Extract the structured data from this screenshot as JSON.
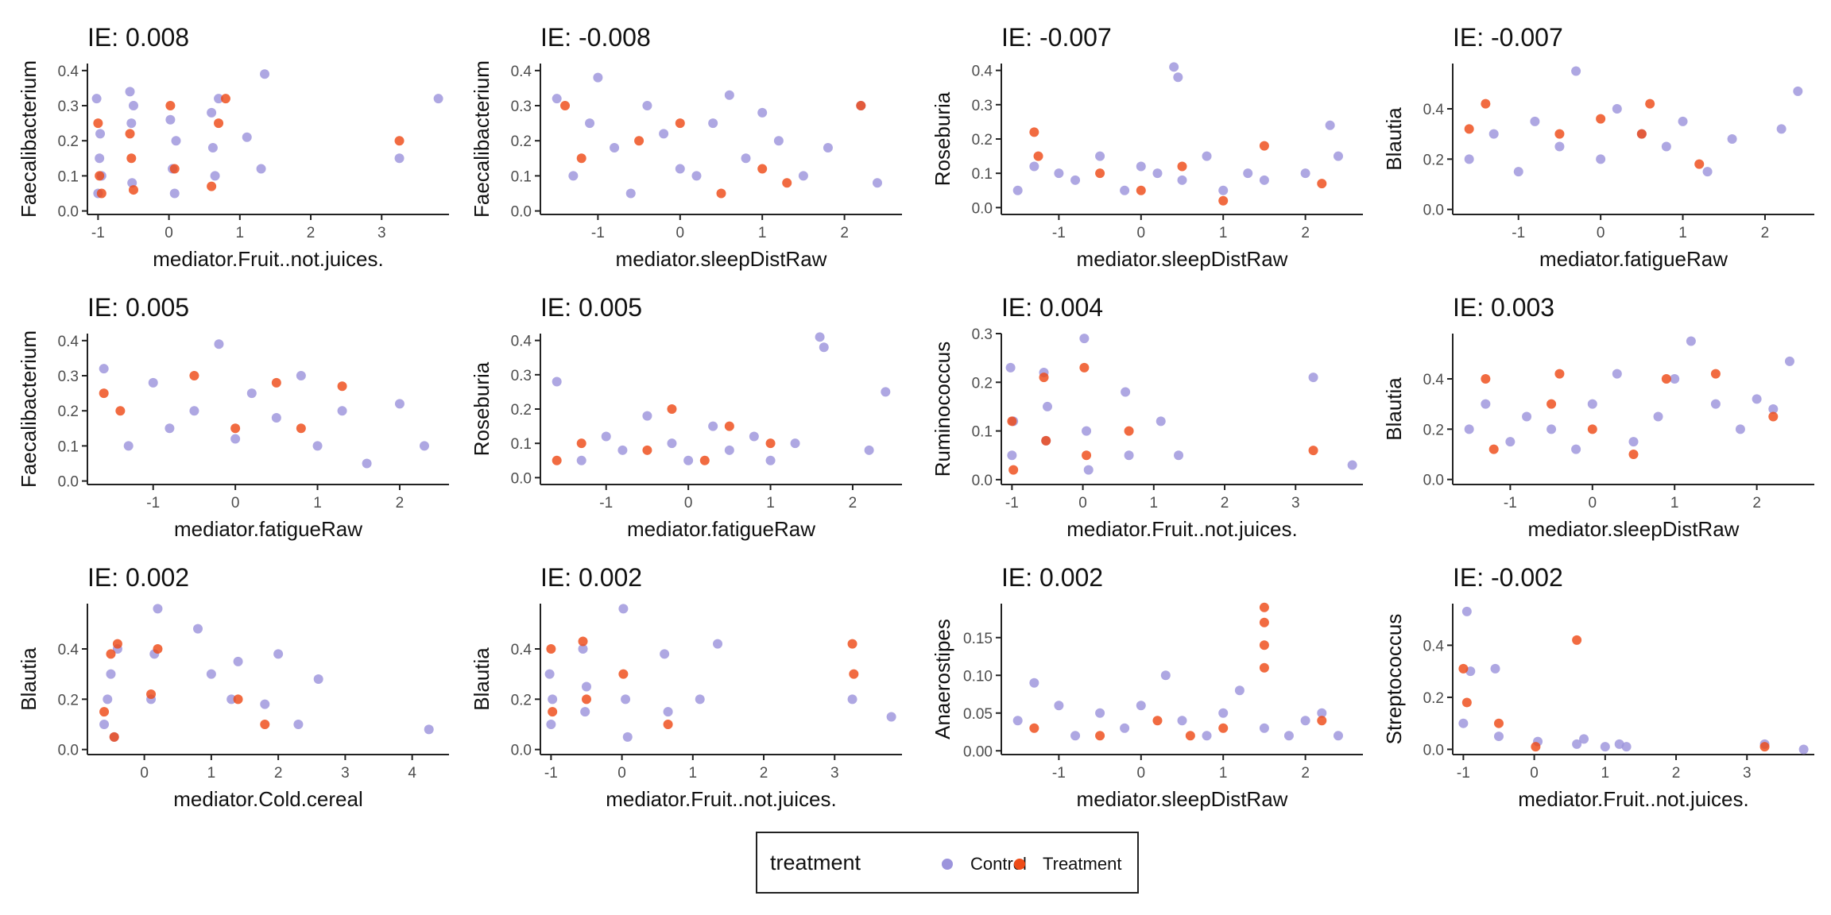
{
  "colors": {
    "control": "#9c94dc",
    "treatment": "#ee4b17",
    "axis": "#222222",
    "tick_text": "#4d4d4d"
  },
  "legend": {
    "title": "treatment",
    "items": [
      {
        "label": "Control"
      },
      {
        "label": "Treatment"
      }
    ]
  },
  "chart_data": [
    {
      "type": "scatter",
      "title": "IE: 0.008",
      "xlabel": "mediator.Fruit..not.juices.",
      "ylabel": "Faecalibacterium",
      "xlim": [
        -1.15,
        3.95
      ],
      "ylim": [
        -0.01,
        0.42
      ],
      "xticks": [
        -1,
        0,
        1,
        2,
        3
      ],
      "yticks": [
        0.0,
        0.1,
        0.2,
        0.3,
        0.4
      ],
      "series": [
        {
          "name": "Control",
          "x": [
            -1.02,
            -1.0,
            -0.98,
            -0.97,
            -0.95,
            -0.55,
            -0.53,
            -0.52,
            -0.5,
            0.02,
            0.05,
            0.08,
            0.1,
            0.6,
            0.62,
            0.65,
            0.7,
            1.1,
            1.3,
            1.35,
            3.25,
            3.8
          ],
          "y": [
            0.32,
            0.05,
            0.15,
            0.22,
            0.1,
            0.34,
            0.25,
            0.08,
            0.3,
            0.26,
            0.12,
            0.05,
            0.2,
            0.28,
            0.18,
            0.1,
            0.32,
            0.21,
            0.12,
            0.39,
            0.15,
            0.32
          ]
        },
        {
          "name": "Treatment",
          "x": [
            -1.0,
            -0.98,
            -0.95,
            -0.55,
            -0.53,
            -0.5,
            0.02,
            0.08,
            0.6,
            0.7,
            0.8,
            3.25
          ],
          "y": [
            0.25,
            0.1,
            0.05,
            0.22,
            0.15,
            0.06,
            0.3,
            0.12,
            0.07,
            0.25,
            0.32,
            0.2
          ]
        }
      ]
    },
    {
      "type": "scatter",
      "title": "IE: -0.008",
      "xlabel": "mediator.sleepDistRaw",
      "ylabel": "Faecalibacterium",
      "xlim": [
        -1.7,
        2.7
      ],
      "ylim": [
        -0.01,
        0.42
      ],
      "xticks": [
        -1,
        0,
        1,
        2
      ],
      "yticks": [
        0.0,
        0.1,
        0.2,
        0.3,
        0.4
      ],
      "series": [
        {
          "name": "Control",
          "x": [
            -1.5,
            -1.3,
            -1.1,
            -1.0,
            -0.8,
            -0.6,
            -0.4,
            -0.2,
            0.0,
            0.2,
            0.4,
            0.6,
            0.8,
            1.0,
            1.2,
            1.5,
            1.8,
            2.2,
            2.4
          ],
          "y": [
            0.32,
            0.1,
            0.25,
            0.38,
            0.18,
            0.05,
            0.3,
            0.22,
            0.12,
            0.1,
            0.25,
            0.33,
            0.15,
            0.28,
            0.2,
            0.1,
            0.18,
            0.3,
            0.08
          ]
        },
        {
          "name": "Treatment",
          "x": [
            -1.4,
            -1.2,
            -0.5,
            0.0,
            0.5,
            1.0,
            1.3,
            2.2
          ],
          "y": [
            0.3,
            0.15,
            0.2,
            0.25,
            0.05,
            0.12,
            0.08,
            0.3
          ]
        }
      ]
    },
    {
      "type": "scatter",
      "title": "IE: -0.007",
      "xlabel": "mediator.sleepDistRaw",
      "ylabel": "Roseburia",
      "xlim": [
        -1.7,
        2.7
      ],
      "ylim": [
        -0.02,
        0.42
      ],
      "xticks": [
        -1,
        0,
        1,
        2
      ],
      "yticks": [
        0.0,
        0.1,
        0.2,
        0.3,
        0.4
      ],
      "series": [
        {
          "name": "Control",
          "x": [
            -1.5,
            -1.3,
            -1.0,
            -0.8,
            -0.5,
            -0.2,
            0.0,
            0.2,
            0.4,
            0.45,
            0.5,
            0.8,
            1.0,
            1.3,
            1.5,
            2.0,
            2.3,
            2.4
          ],
          "y": [
            0.05,
            0.12,
            0.1,
            0.08,
            0.15,
            0.05,
            0.12,
            0.1,
            0.41,
            0.38,
            0.08,
            0.15,
            0.05,
            0.1,
            0.08,
            0.1,
            0.24,
            0.15
          ]
        },
        {
          "name": "Treatment",
          "x": [
            -1.3,
            -1.25,
            -0.5,
            0.0,
            0.5,
            1.0,
            1.5,
            2.2
          ],
          "y": [
            0.22,
            0.15,
            0.1,
            0.05,
            0.12,
            0.02,
            0.18,
            0.07
          ]
        }
      ]
    },
    {
      "type": "scatter",
      "title": "IE: -0.007",
      "xlabel": "mediator.fatigueRaw",
      "ylabel": "Blautia",
      "xlim": [
        -1.8,
        2.6
      ],
      "ylim": [
        -0.02,
        0.58
      ],
      "xticks": [
        -1,
        0,
        1,
        2
      ],
      "yticks": [
        0.0,
        0.2,
        0.4
      ],
      "series": [
        {
          "name": "Control",
          "x": [
            -1.6,
            -1.3,
            -1.0,
            -0.8,
            -0.5,
            -0.3,
            0.0,
            0.2,
            0.5,
            0.8,
            1.0,
            1.3,
            1.6,
            2.2,
            2.4
          ],
          "y": [
            0.2,
            0.3,
            0.15,
            0.35,
            0.25,
            0.55,
            0.2,
            0.4,
            0.3,
            0.25,
            0.35,
            0.15,
            0.28,
            0.32,
            0.47
          ]
        },
        {
          "name": "Treatment",
          "x": [
            -1.6,
            -1.4,
            -0.5,
            0.0,
            0.5,
            0.6,
            1.2
          ],
          "y": [
            0.32,
            0.42,
            0.3,
            0.36,
            0.3,
            0.42,
            0.18
          ]
        }
      ]
    },
    {
      "type": "scatter",
      "title": "IE: 0.005",
      "xlabel": "mediator.fatigueRaw",
      "ylabel": "Faecalibacterium",
      "xlim": [
        -1.8,
        2.6
      ],
      "ylim": [
        -0.01,
        0.42
      ],
      "xticks": [
        -1,
        0,
        1,
        2
      ],
      "yticks": [
        0.0,
        0.1,
        0.2,
        0.3,
        0.4
      ],
      "series": [
        {
          "name": "Control",
          "x": [
            -1.6,
            -1.3,
            -1.0,
            -0.8,
            -0.5,
            -0.2,
            0.0,
            0.2,
            0.5,
            0.8,
            1.0,
            1.3,
            1.6,
            2.0,
            2.3
          ],
          "y": [
            0.32,
            0.1,
            0.28,
            0.15,
            0.2,
            0.39,
            0.12,
            0.25,
            0.18,
            0.3,
            0.1,
            0.2,
            0.05,
            0.22,
            0.1
          ]
        },
        {
          "name": "Treatment",
          "x": [
            -1.6,
            -1.4,
            -0.5,
            0.0,
            0.5,
            0.8,
            1.3
          ],
          "y": [
            0.25,
            0.2,
            0.3,
            0.15,
            0.28,
            0.15,
            0.27
          ]
        }
      ]
    },
    {
      "type": "scatter",
      "title": "IE: 0.005",
      "xlabel": "mediator.fatigueRaw",
      "ylabel": "Roseburia",
      "xlim": [
        -1.8,
        2.6
      ],
      "ylim": [
        -0.02,
        0.42
      ],
      "xticks": [
        -1,
        0,
        1,
        2
      ],
      "yticks": [
        0.0,
        0.1,
        0.2,
        0.3,
        0.4
      ],
      "series": [
        {
          "name": "Control",
          "x": [
            -1.6,
            -1.3,
            -1.0,
            -0.8,
            -0.5,
            -0.2,
            0.0,
            0.3,
            0.5,
            0.8,
            1.0,
            1.3,
            1.6,
            1.65,
            2.2,
            2.4
          ],
          "y": [
            0.28,
            0.05,
            0.12,
            0.08,
            0.18,
            0.1,
            0.05,
            0.15,
            0.08,
            0.12,
            0.05,
            0.1,
            0.41,
            0.38,
            0.08,
            0.25
          ]
        },
        {
          "name": "Treatment",
          "x": [
            -1.6,
            -1.3,
            -0.5,
            -0.2,
            0.2,
            0.5,
            1.0
          ],
          "y": [
            0.05,
            0.1,
            0.08,
            0.2,
            0.05,
            0.15,
            0.1
          ]
        }
      ]
    },
    {
      "type": "scatter",
      "title": "IE: 0.004",
      "xlabel": "mediator.Fruit..not.juices.",
      "ylabel": "Ruminococcus",
      "xlim": [
        -1.15,
        3.95
      ],
      "ylim": [
        -0.01,
        0.3
      ],
      "xticks": [
        -1,
        0,
        1,
        2,
        3
      ],
      "yticks": [
        0.0,
        0.1,
        0.2,
        0.3
      ],
      "series": [
        {
          "name": "Control",
          "x": [
            -1.02,
            -1.0,
            -0.98,
            -0.55,
            -0.52,
            -0.5,
            0.02,
            0.05,
            0.08,
            0.6,
            0.65,
            1.1,
            1.35,
            3.25,
            3.8
          ],
          "y": [
            0.23,
            0.05,
            0.12,
            0.22,
            0.08,
            0.15,
            0.29,
            0.1,
            0.02,
            0.18,
            0.05,
            0.12,
            0.05,
            0.21,
            0.03
          ]
        },
        {
          "name": "Treatment",
          "x": [
            -1.0,
            -0.98,
            -0.55,
            -0.52,
            0.02,
            0.05,
            0.65,
            3.25
          ],
          "y": [
            0.12,
            0.02,
            0.21,
            0.08,
            0.23,
            0.05,
            0.1,
            0.06
          ]
        }
      ]
    },
    {
      "type": "scatter",
      "title": "IE: 0.003",
      "xlabel": "mediator.sleepDistRaw",
      "ylabel": "Blautia",
      "xlim": [
        -1.7,
        2.7
      ],
      "ylim": [
        -0.02,
        0.58
      ],
      "xticks": [
        -1,
        0,
        1,
        2
      ],
      "yticks": [
        0.0,
        0.2,
        0.4
      ],
      "series": [
        {
          "name": "Control",
          "x": [
            -1.5,
            -1.3,
            -1.0,
            -0.8,
            -0.5,
            -0.2,
            0.0,
            0.3,
            0.5,
            0.8,
            1.0,
            1.2,
            1.5,
            1.8,
            2.0,
            2.2,
            2.4
          ],
          "y": [
            0.2,
            0.3,
            0.15,
            0.25,
            0.2,
            0.12,
            0.3,
            0.42,
            0.15,
            0.25,
            0.4,
            0.55,
            0.3,
            0.2,
            0.32,
            0.28,
            0.47
          ]
        },
        {
          "name": "Treatment",
          "x": [
            -1.3,
            -1.2,
            -0.5,
            -0.4,
            0.0,
            0.5,
            0.9,
            1.5,
            2.2
          ],
          "y": [
            0.4,
            0.12,
            0.3,
            0.42,
            0.2,
            0.1,
            0.4,
            0.42,
            0.25
          ]
        }
      ]
    },
    {
      "type": "scatter",
      "title": "IE: 0.002",
      "xlabel": "mediator.Cold.cereal",
      "ylabel": "Blautia",
      "xlim": [
        -0.85,
        4.55
      ],
      "ylim": [
        -0.02,
        0.58
      ],
      "xticks": [
        0,
        1,
        2,
        3,
        4
      ],
      "yticks": [
        0.0,
        0.2,
        0.4
      ],
      "series": [
        {
          "name": "Control",
          "x": [
            -0.6,
            -0.55,
            -0.5,
            -0.45,
            -0.4,
            0.1,
            0.15,
            0.2,
            0.8,
            1.0,
            1.3,
            1.4,
            1.8,
            2.0,
            2.3,
            2.6,
            4.25
          ],
          "y": [
            0.1,
            0.2,
            0.3,
            0.05,
            0.4,
            0.2,
            0.38,
            0.56,
            0.48,
            0.3,
            0.2,
            0.35,
            0.18,
            0.38,
            0.1,
            0.28,
            0.08
          ]
        },
        {
          "name": "Treatment",
          "x": [
            -0.6,
            -0.5,
            -0.45,
            -0.4,
            0.1,
            0.2,
            1.4,
            1.8
          ],
          "y": [
            0.15,
            0.38,
            0.05,
            0.42,
            0.22,
            0.4,
            0.2,
            0.1
          ]
        }
      ]
    },
    {
      "type": "scatter",
      "title": "IE: 0.002",
      "xlabel": "mediator.Fruit..not.juices.",
      "ylabel": "Blautia",
      "xlim": [
        -1.15,
        3.95
      ],
      "ylim": [
        -0.02,
        0.58
      ],
      "xticks": [
        -1,
        0,
        1,
        2,
        3
      ],
      "yticks": [
        0.0,
        0.2,
        0.4
      ],
      "series": [
        {
          "name": "Control",
          "x": [
            -1.02,
            -1.0,
            -0.98,
            -0.55,
            -0.52,
            -0.5,
            0.02,
            0.05,
            0.08,
            0.6,
            0.65,
            1.1,
            1.35,
            3.25,
            3.8
          ],
          "y": [
            0.3,
            0.1,
            0.2,
            0.4,
            0.15,
            0.25,
            0.56,
            0.2,
            0.05,
            0.38,
            0.15,
            0.2,
            0.42,
            0.2,
            0.13
          ]
        },
        {
          "name": "Treatment",
          "x": [
            -1.0,
            -0.98,
            -0.55,
            -0.5,
            0.02,
            0.65,
            3.25,
            3.27
          ],
          "y": [
            0.4,
            0.15,
            0.43,
            0.2,
            0.3,
            0.1,
            0.42,
            0.3
          ]
        }
      ]
    },
    {
      "type": "scatter",
      "title": "IE: 0.002",
      "xlabel": "mediator.sleepDistRaw",
      "ylabel": "Anaerostipes",
      "xlim": [
        -1.7,
        2.7
      ],
      "ylim": [
        -0.005,
        0.195
      ],
      "xticks": [
        -1,
        0,
        1,
        2
      ],
      "yticks": [
        0.0,
        0.05,
        0.1,
        0.15
      ],
      "series": [
        {
          "name": "Control",
          "x": [
            -1.5,
            -1.3,
            -1.0,
            -0.8,
            -0.5,
            -0.2,
            0.0,
            0.3,
            0.5,
            0.8,
            1.0,
            1.2,
            1.5,
            1.8,
            2.0,
            2.2,
            2.4
          ],
          "y": [
            0.04,
            0.09,
            0.06,
            0.02,
            0.05,
            0.03,
            0.06,
            0.1,
            0.04,
            0.02,
            0.05,
            0.08,
            0.03,
            0.02,
            0.04,
            0.05,
            0.02
          ]
        },
        {
          "name": "Treatment",
          "x": [
            -1.3,
            -0.5,
            0.2,
            0.6,
            1.0,
            1.5,
            1.5,
            1.5,
            1.5,
            2.2
          ],
          "y": [
            0.03,
            0.02,
            0.04,
            0.02,
            0.03,
            0.19,
            0.17,
            0.14,
            0.11,
            0.04
          ]
        }
      ]
    },
    {
      "type": "scatter",
      "title": "IE: -0.002",
      "xlabel": "mediator.Fruit..not.juices.",
      "ylabel": "Streptococcus",
      "xlim": [
        -1.15,
        3.95
      ],
      "ylim": [
        -0.02,
        0.56
      ],
      "xticks": [
        -1,
        0,
        1,
        2,
        3
      ],
      "yticks": [
        0.0,
        0.2,
        0.4
      ],
      "series": [
        {
          "name": "Control",
          "x": [
            -1.0,
            -0.95,
            -0.9,
            -0.55,
            -0.5,
            0.05,
            0.6,
            0.7,
            1.0,
            1.2,
            1.3,
            3.25,
            3.8
          ],
          "y": [
            0.1,
            0.53,
            0.3,
            0.31,
            0.05,
            0.03,
            0.02,
            0.04,
            0.01,
            0.02,
            0.01,
            0.02,
            0.0
          ]
        },
        {
          "name": "Treatment",
          "x": [
            -1.0,
            -0.95,
            -0.5,
            0.02,
            0.6,
            3.25
          ],
          "y": [
            0.31,
            0.18,
            0.1,
            0.01,
            0.42,
            0.01
          ]
        }
      ]
    }
  ]
}
